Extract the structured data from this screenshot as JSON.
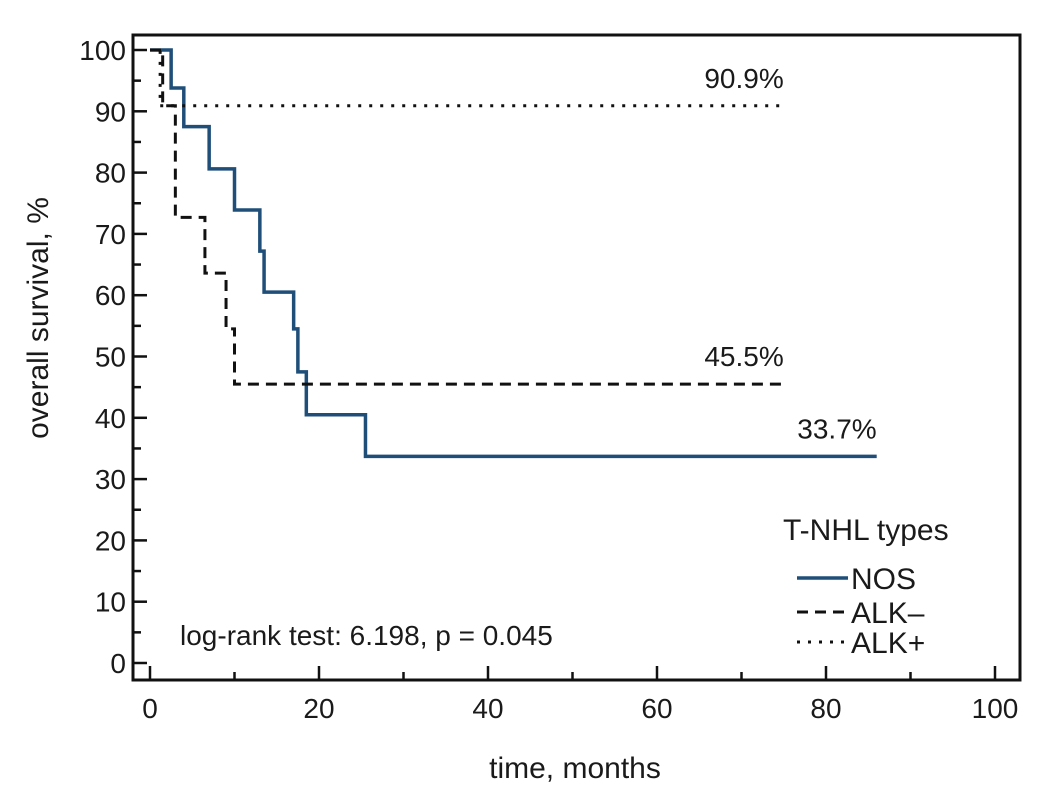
{
  "chart_data": {
    "type": "line",
    "subtype": "kaplan-meier step",
    "xlabel": "time, months",
    "ylabel": "overall survival, %",
    "xlim": [
      0,
      100
    ],
    "ylim": [
      0,
      100
    ],
    "xticks": [
      "0",
      "20",
      "40",
      "60",
      "80",
      "100"
    ],
    "yticks": [
      "0",
      "10",
      "20",
      "30",
      "40",
      "50",
      "60",
      "70",
      "80",
      "90",
      "100"
    ],
    "grid": false,
    "legend": {
      "title": "T-NHL types",
      "placement": "bottom-right"
    },
    "series": [
      {
        "name": "NOS",
        "style": "solid",
        "color": "#1f4e79",
        "x": [
          0,
          2.5,
          4,
          7,
          10,
          13,
          13.5,
          17,
          17.5,
          18.5,
          25.5,
          86
        ],
        "y": [
          100,
          93.8,
          87.5,
          80.6,
          73.9,
          67.2,
          60.5,
          54.5,
          47.5,
          40.5,
          33.7,
          33.7
        ],
        "end_label": "33.7%"
      },
      {
        "name": "ALK–",
        "style": "dashed",
        "color": "#111111",
        "x": [
          0,
          1.5,
          3,
          6.5,
          9,
          10,
          75
        ],
        "y": [
          100,
          90.9,
          72.7,
          63.6,
          54.5,
          45.5,
          45.5
        ],
        "end_label": "45.5%"
      },
      {
        "name": "ALK+",
        "style": "dotted",
        "color": "#111111",
        "x": [
          0,
          1.2,
          75
        ],
        "y": [
          100,
          90.9,
          90.9
        ],
        "end_label": "90.9%"
      }
    ],
    "annotations": [
      {
        "text": "log-rank test: 6.198, p = 0.045"
      }
    ]
  }
}
